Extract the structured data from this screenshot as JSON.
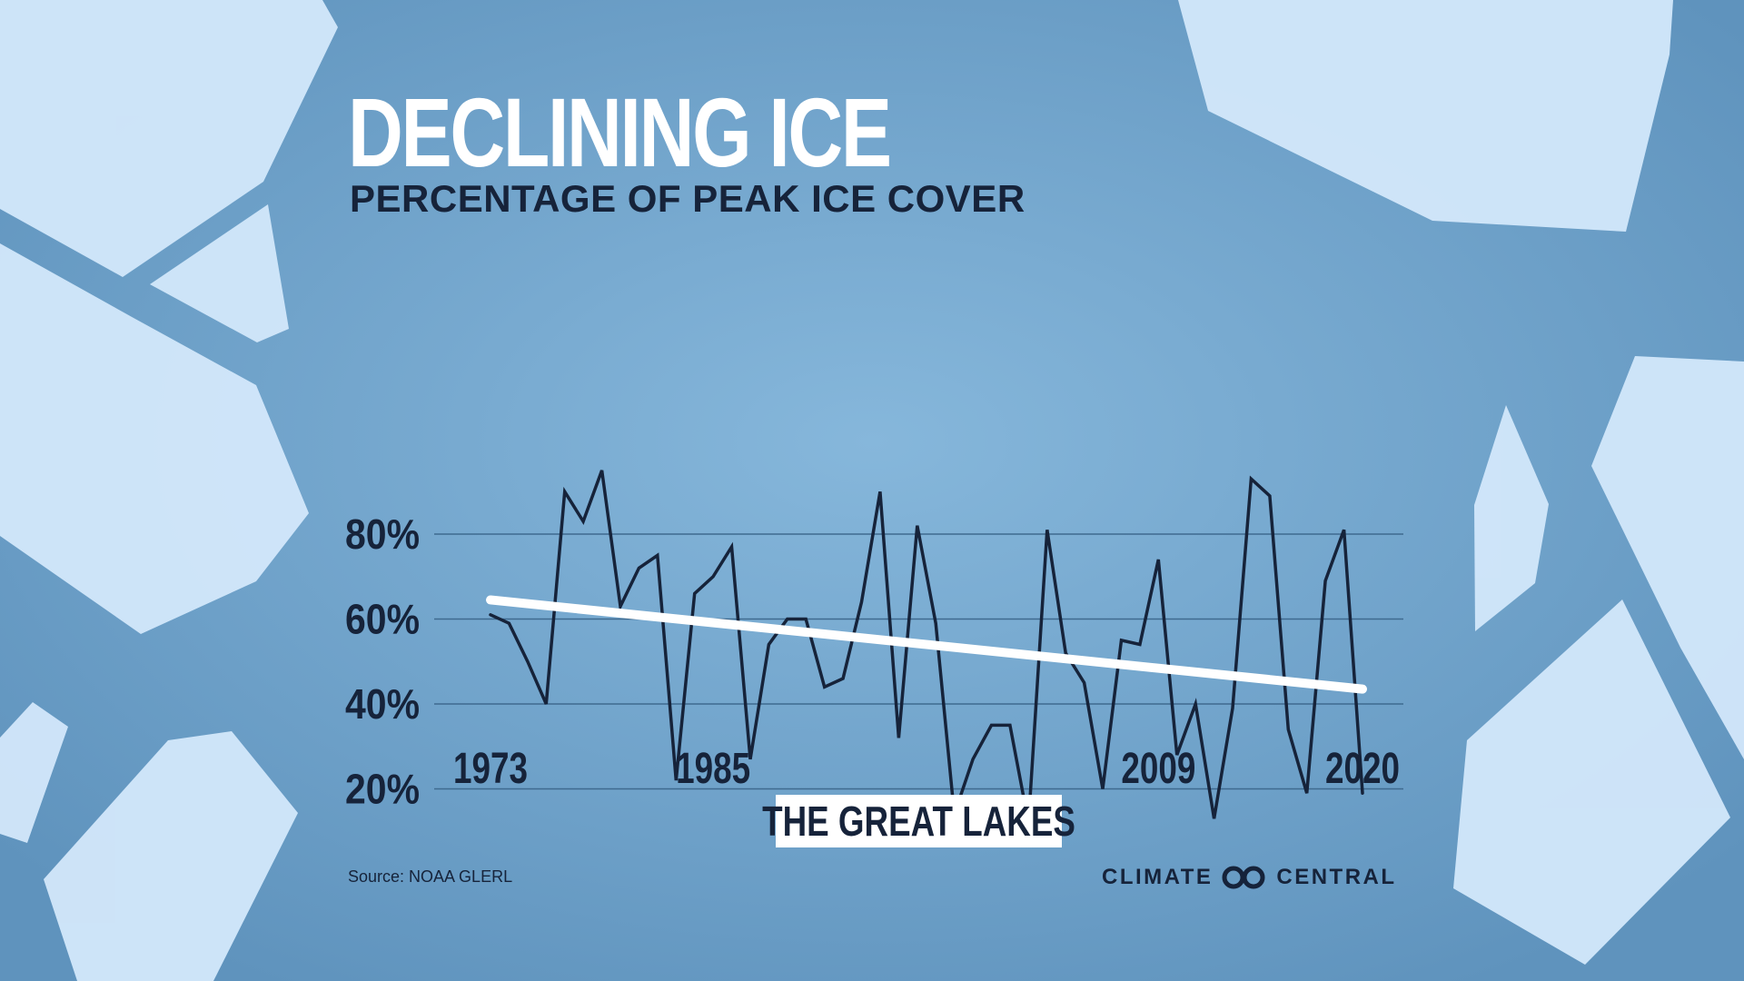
{
  "title": "DECLINING ICE",
  "subtitle": "PERCENTAGE OF PEAK ICE COVER",
  "region_label": "THE GREAT LAKES",
  "source": "Source: NOAA GLERL",
  "brand": {
    "left": "CLIMATE",
    "right": "CENTRAL",
    "logo_icon": "linked-circles-icon"
  },
  "colors": {
    "background": "#6c9fc7",
    "ice": "#d3e8fb",
    "line": "#16233a",
    "trend": "#ffffff",
    "grid": "#3f6a8f"
  },
  "chart_data": {
    "type": "line",
    "title": "PERCENTAGE OF PEAK ICE COVER",
    "xlabel": "",
    "ylabel": "",
    "xlim": [
      1973,
      2020
    ],
    "ylim": [
      10,
      95
    ],
    "grid": true,
    "x_ticks": [
      1973,
      1985,
      2009,
      2020
    ],
    "y_ticks": [
      20,
      40,
      60,
      80
    ],
    "y_tick_labels": [
      "20%",
      "40%",
      "60%",
      "80%"
    ],
    "series": [
      {
        "x": [
          1973,
          1974,
          1975,
          1976,
          1977,
          1978,
          1979,
          1980,
          1981,
          1982,
          1983,
          1984,
          1985,
          1986,
          1987,
          1988,
          1989,
          1990,
          1991,
          1992,
          1993,
          1994,
          1995,
          1996,
          1997,
          1998,
          1999,
          2000,
          2001,
          2002,
          2003,
          2004,
          2005,
          2006,
          2007,
          2008,
          2009,
          2010,
          2011,
          2012,
          2013,
          2014,
          2015,
          2016,
          2017,
          2018,
          2019,
          2020
        ],
        "y": [
          61,
          59,
          50,
          40,
          90,
          83,
          95,
          63,
          72,
          75,
          22,
          66,
          70,
          77,
          27,
          54,
          60,
          60,
          44,
          46,
          64,
          90,
          32,
          82,
          59,
          14,
          27,
          35,
          35,
          12,
          81,
          52,
          45,
          20,
          55,
          54,
          74,
          28,
          40,
          13,
          39,
          93,
          89,
          34,
          19,
          69,
          81,
          19
        ]
      },
      {
        "type": "trend",
        "x": [
          1973,
          2020
        ],
        "y": [
          64.5,
          43.5
        ]
      }
    ]
  }
}
